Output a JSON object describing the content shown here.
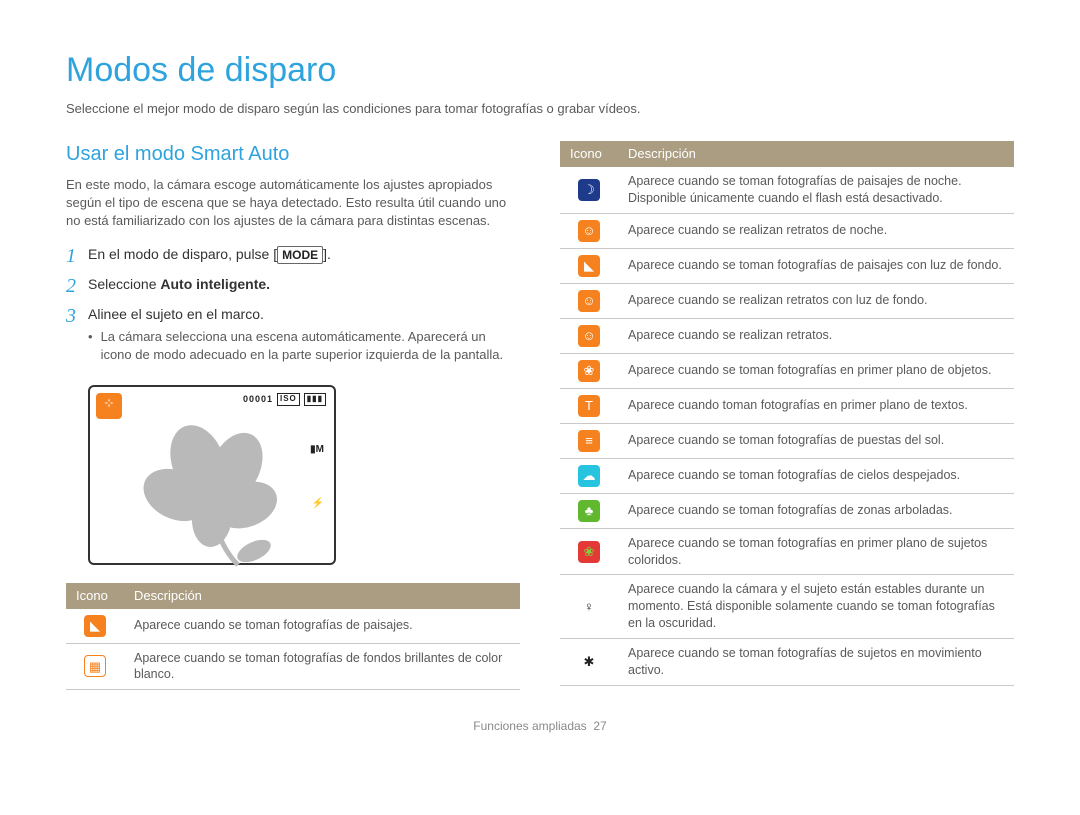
{
  "title": "Modos de disparo",
  "intro": "Seleccione el mejor modo de disparo según las condiciones para tomar fotografías o grabar vídeos.",
  "section_heading": "Usar el modo Smart Auto",
  "section_para": "En este modo, la cámara escoge automáticamente los ajustes apropiados según el tipo de escena que se haya detectado. Esto resulta útil cuando uno no está familiarizado con los ajustes de la cámara para distintas escenas.",
  "steps": {
    "s1_pre": "En el modo de disparo, pulse [",
    "s1_mode": "MODE",
    "s1_post": "].",
    "s2_pre": "Seleccione ",
    "s2_bold": "Auto inteligente.",
    "s3": "Alinee el sujeto en el marco.",
    "s3_bullet": "La cámara selecciona una escena automáticamente. Aparecerá un icono de modo adecuado en la parte superior izquierda de la pantalla."
  },
  "screen": {
    "counter": "00001",
    "box1": "ISO",
    "box2": "▮▮▮"
  },
  "table_headers": {
    "icon": "Icono",
    "desc": "Descripción"
  },
  "left_table": [
    {
      "color": "#f5821f",
      "text_color": "#ffffff",
      "glyph": "◣",
      "desc": "Aparece cuando se toman fotografías de paisajes."
    },
    {
      "color": "#ffffff",
      "text_color": "#f5821f",
      "border": "#f5821f",
      "glyph": "▦",
      "desc": "Aparece cuando se toman fotografías de fondos brillantes de color blanco."
    }
  ],
  "right_table": [
    {
      "color": "#1e3a8a",
      "text_color": "#ffffff",
      "glyph": "☽",
      "desc": "Aparece cuando se toman fotografías de paisajes de noche. Disponible únicamente cuando el flash está desactivado."
    },
    {
      "color": "#f5821f",
      "text_color": "#ffffff",
      "glyph": "☺",
      "desc": "Aparece cuando se realizan retratos de noche."
    },
    {
      "color": "#f5821f",
      "text_color": "#ffffff",
      "glyph": "◣",
      "desc": "Aparece cuando se toman fotografías de paisajes con luz de fondo."
    },
    {
      "color": "#f5821f",
      "text_color": "#ffffff",
      "glyph": "☺",
      "desc": "Aparece cuando se realizan retratos con luz de fondo."
    },
    {
      "color": "#f5821f",
      "text_color": "#ffffff",
      "glyph": "☺",
      "desc": "Aparece cuando se realizan retratos."
    },
    {
      "color": "#f5821f",
      "text_color": "#ffffff",
      "glyph": "❀",
      "desc": "Aparece cuando se toman fotografías en primer plano de objetos."
    },
    {
      "color": "#f5821f",
      "text_color": "#ffffff",
      "glyph": "T",
      "desc": "Aparece cuando toman fotografías en primer plano de textos."
    },
    {
      "color": "#f5821f",
      "text_color": "#ffffff",
      "glyph": "≡",
      "desc": "Aparece cuando se toman fotografías de puestas del sol."
    },
    {
      "color": "#27c4e0",
      "text_color": "#ffffff",
      "glyph": "☁",
      "desc": "Aparece cuando se toman fotografías de cielos despejados."
    },
    {
      "color": "#5fb82e",
      "text_color": "#ffffff",
      "glyph": "♣",
      "desc": "Aparece cuando se toman fotografías de zonas arboladas."
    },
    {
      "color": "#e53935",
      "text_color": "#7fd13b",
      "glyph": "❀",
      "desc": "Aparece cuando se toman fotografías en primer plano de sujetos coloridos."
    },
    {
      "color": "transparent",
      "text_color": "#222222",
      "glyph": "♀",
      "desc": "Aparece cuando la cámara y el sujeto están estables durante un momento. Está disponible solamente cuando se toman fotografías en la oscuridad."
    },
    {
      "color": "transparent",
      "text_color": "#222222",
      "glyph": "✱",
      "desc": "Aparece cuando se toman fotografías de sujetos en movimiento activo."
    }
  ],
  "footer": {
    "label": "Funciones ampliadas",
    "page": "27"
  }
}
